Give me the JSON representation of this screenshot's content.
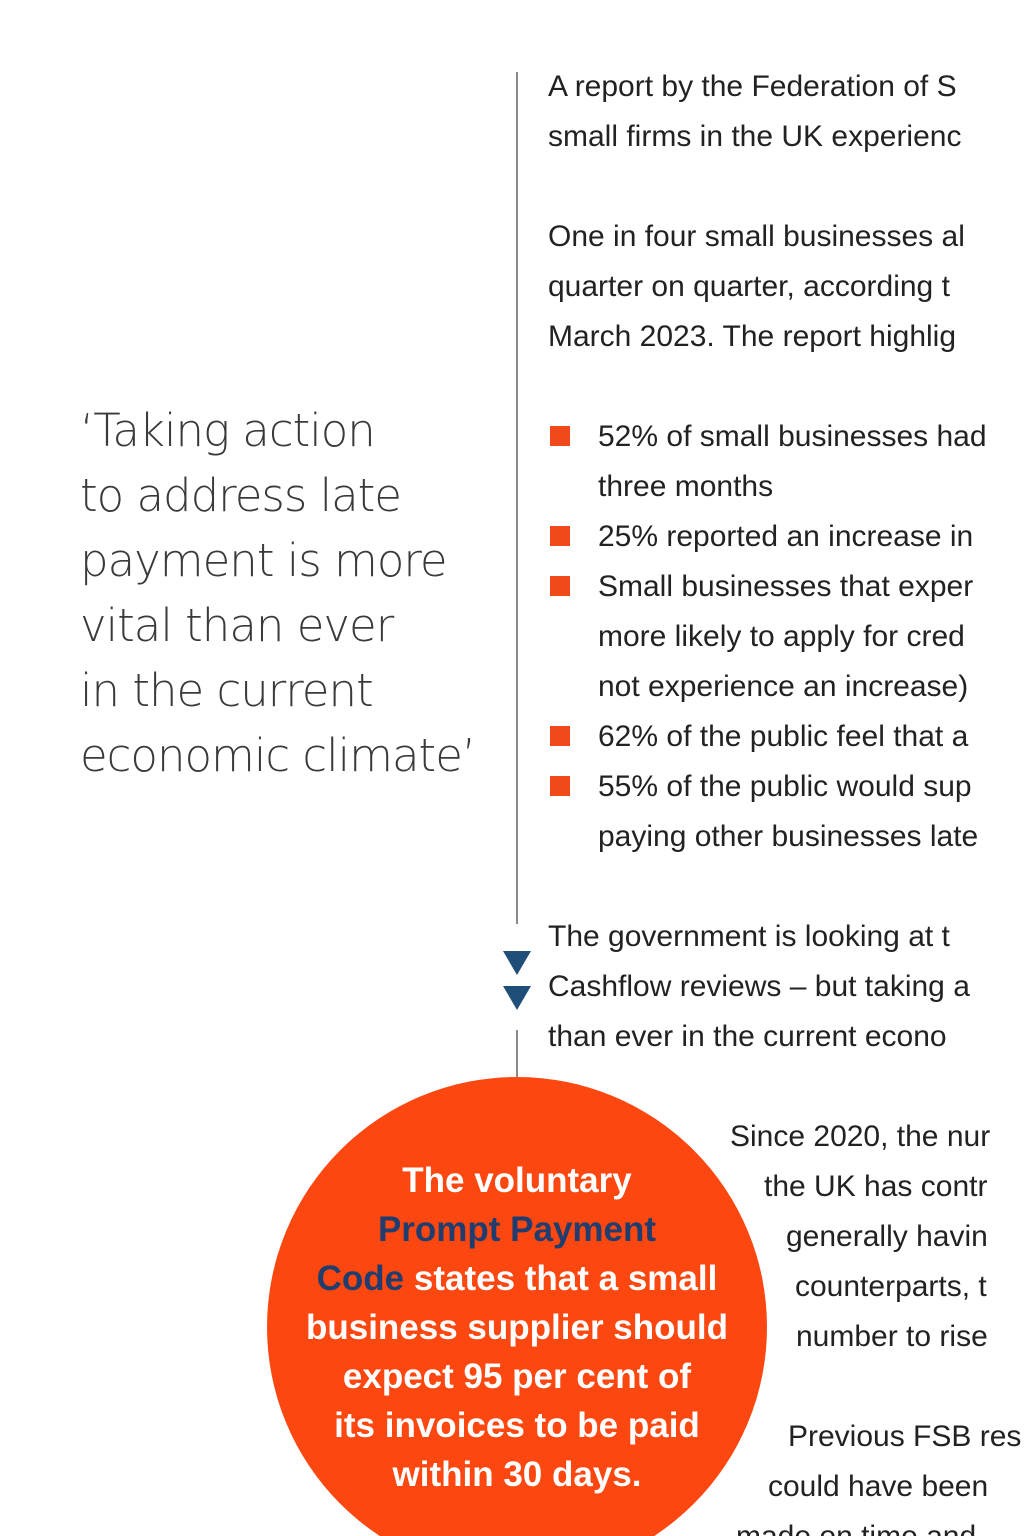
{
  "pull_quote": {
    "lines": [
      "‘Taking action",
      "to address late",
      "payment is more",
      "vital than ever",
      "in the current",
      "economic climate’"
    ]
  },
  "intro": {
    "p1": [
      "A report by the Federation of S",
      "small firms in the UK experienc"
    ],
    "p2": [
      "One in four small businesses al",
      "quarter on quarter, according t",
      "March 2023. The report highlig"
    ]
  },
  "bullets": [
    [
      "52% of small businesses had",
      "three months"
    ],
    [
      "25% reported an increase in"
    ],
    [
      "Small businesses that exper",
      "more likely to apply for cred",
      "not experience an increase)"
    ],
    [
      "62% of the public feel that a"
    ],
    [
      "55% of the public would sup",
      "paying other businesses late"
    ]
  ],
  "government": [
    "The government is looking at t",
    "Cashflow reviews – but taking a",
    "than ever in the current econo"
  ],
  "callout": {
    "l1": "The voluntary",
    "l2_hl": "Prompt Payment",
    "l3_hl": "Code",
    "l3_rest": " states that a small",
    "l4": "business supplier should",
    "l5": "expect 95 per cent of",
    "l6": "its invoices to be paid",
    "l7": "within 30 days."
  },
  "right_column": {
    "p1": [
      "Since 2020, the nur",
      "the UK has contr",
      "generally havin",
      "counterparts, t",
      "number to rise"
    ],
    "p2": [
      "Previous FSB res",
      "could have been",
      "made on time and"
    ]
  },
  "colors": {
    "accent": "#fc4710",
    "bullet": "#f04a1a",
    "navy": "#1f4e79",
    "highlight": "#1f3d6e"
  }
}
